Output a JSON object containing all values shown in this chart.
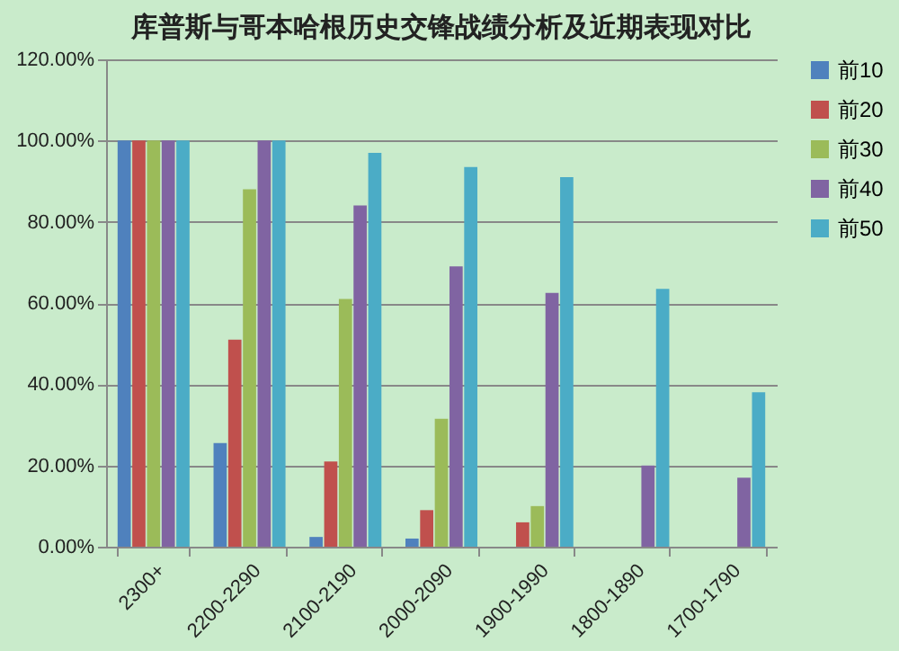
{
  "chart_data": {
    "type": "bar",
    "title": "库普斯与哥本哈根历史交锋战绩分析及近期表现对比",
    "categories": [
      "2300+",
      "2200-2290",
      "2100-2190",
      "2000-2090",
      "1900-1990",
      "1800-1890",
      "1700-1790"
    ],
    "series": [
      {
        "name": "前10",
        "color": "#4f81bd",
        "values": [
          100,
          25.5,
          2.4,
          2,
          0,
          0,
          0
        ]
      },
      {
        "name": "前20",
        "color": "#c0504d",
        "values": [
          100,
          51,
          21,
          9,
          6,
          0,
          0
        ]
      },
      {
        "name": "前30",
        "color": "#9bbb59",
        "values": [
          100,
          88,
          61,
          31.5,
          10,
          0,
          0
        ]
      },
      {
        "name": "前40",
        "color": "#8064a2",
        "values": [
          100,
          100,
          84,
          69,
          62.5,
          20,
          17
        ]
      },
      {
        "name": "前50",
        "color": "#4bacc6",
        "values": [
          100,
          100,
          97,
          93.5,
          91,
          63.5,
          38
        ]
      }
    ],
    "ylim": [
      0,
      120
    ],
    "yticks": [
      {
        "value": 0,
        "label": "0.00%"
      },
      {
        "value": 20,
        "label": "20.00%"
      },
      {
        "value": 40,
        "label": "40.00%"
      },
      {
        "value": 60,
        "label": "60.00%"
      },
      {
        "value": 80,
        "label": "80.00%"
      },
      {
        "value": 100,
        "label": "100.00%"
      },
      {
        "value": 120,
        "label": "120.00%"
      }
    ],
    "grid": "y",
    "legend": "right"
  }
}
